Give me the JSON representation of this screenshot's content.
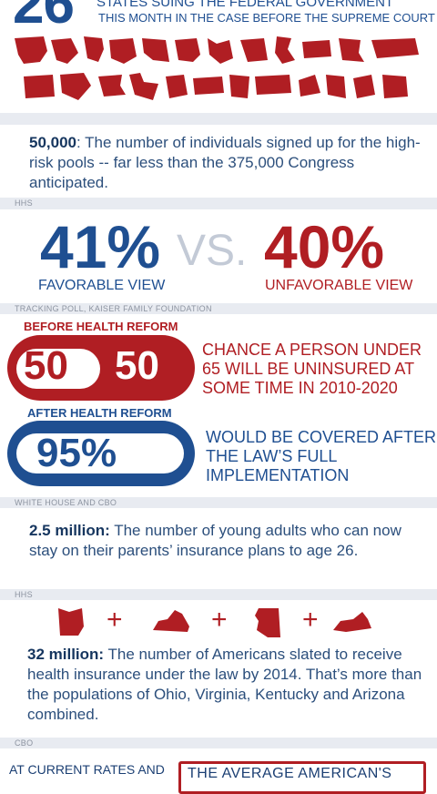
{
  "header": {
    "big_number": "26",
    "line1": "STATES SUING THE FEDERAL GOVERNMENT",
    "line2": "THIS MONTH IN THE CASE BEFORE THE SUPREME COURT"
  },
  "stat_highrisk": {
    "bold": "50,000",
    "text": ": The number of individuals signed up for the high-risk pools -- far less than the 375,000 Congress anticipated."
  },
  "source_hhs_1": "HHS",
  "poll": {
    "favorable_pct": "41%",
    "vs": "VS.",
    "unfavorable_pct": "40%",
    "favorable_label": "FAVORABLE VIEW",
    "unfavorable_label": "UNFAVORABLE VIEW"
  },
  "source_poll": "TRACKING POLL, KAISER FAMILY FOUNDATION",
  "before": {
    "header": "BEFORE HEALTH REFORM",
    "left_num": "50",
    "right_num": "50",
    "text": "CHANCE A PERSON UNDER 65 WILL BE UNINSURED AT SOME TIME IN 2010-2020"
  },
  "after": {
    "header": "AFTER HEALTH REFORM",
    "pct": "95%",
    "text": "WOULD BE COVERED AFTER THE LAW’S FULL IMPLEMENTATION"
  },
  "source_wh": "WHITE HOUSE AND CBO",
  "stat_young": {
    "bold": "2.5 million:",
    "text": " The number of young adults who can now stay on their parents’ insurance plans to age 26."
  },
  "source_hhs_2": "HHS",
  "plus": "+",
  "stat_32": {
    "bold": "32 million:",
    "text": " The number of Americans slated to receive health insurance under the law by 2014. That’s more than the populations of Ohio, Virginia, Kentucky and Arizona combined."
  },
  "source_cbo": "CBO",
  "bottom": {
    "left": "AT CURRENT RATES AND",
    "box": "THE AVERAGE AMERICAN'S"
  },
  "colors": {
    "red": "#b01e23",
    "blue": "#1f4f91",
    "divider": "#e8ebf1"
  }
}
